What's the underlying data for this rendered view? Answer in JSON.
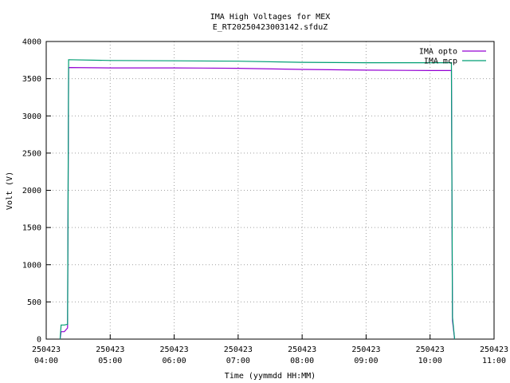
{
  "chart_data": {
    "type": "line",
    "title": [
      "IMA High Voltages for MEX",
      "E_RT20250423003142.sfduZ"
    ],
    "xlabel": "Time (yymmdd HH:MM)",
    "ylabel": "Volt (V)",
    "x": [
      "2025-04-23T04:13",
      "2025-04-23T04:14",
      "2025-04-23T04:17",
      "2025-04-23T04:20",
      "2025-04-23T04:21",
      "2025-04-23T05:00",
      "2025-04-23T06:00",
      "2025-04-23T07:00",
      "2025-04-23T08:00",
      "2025-04-23T09:00",
      "2025-04-23T10:00",
      "2025-04-23T10:20",
      "2025-04-23T10:21",
      "2025-04-23T10:23"
    ],
    "series": [
      {
        "name": "IMA opto",
        "color": "#9400d3",
        "values": [
          0,
          100,
          100,
          150,
          3650,
          3645,
          3645,
          3640,
          3625,
          3615,
          3610,
          3610,
          250,
          0
        ]
      },
      {
        "name": "IMA mcp",
        "color": "#009e73",
        "values": [
          0,
          190,
          190,
          200,
          3755,
          3745,
          3740,
          3735,
          3720,
          3715,
          3715,
          3715,
          300,
          0
        ]
      }
    ],
    "xlim": [
      "2025-04-23T04:00",
      "2025-04-23T11:00"
    ],
    "xticks": [
      {
        "value": "2025-04-23T04:00",
        "label": [
          "250423",
          "04:00"
        ]
      },
      {
        "value": "2025-04-23T05:00",
        "label": [
          "250423",
          "05:00"
        ]
      },
      {
        "value": "2025-04-23T06:00",
        "label": [
          "250423",
          "06:00"
        ]
      },
      {
        "value": "2025-04-23T07:00",
        "label": [
          "250423",
          "07:00"
        ]
      },
      {
        "value": "2025-04-23T08:00",
        "label": [
          "250423",
          "08:00"
        ]
      },
      {
        "value": "2025-04-23T09:00",
        "label": [
          "250423",
          "09:00"
        ]
      },
      {
        "value": "2025-04-23T10:00",
        "label": [
          "250423",
          "10:00"
        ]
      },
      {
        "value": "2025-04-23T11:00",
        "label": [
          "250423",
          "11:00"
        ]
      }
    ],
    "ylim": [
      0,
      4000
    ],
    "yticks": [
      0,
      500,
      1000,
      1500,
      2000,
      2500,
      3000,
      3500,
      4000
    ],
    "grid": true,
    "legend": "top-right"
  }
}
